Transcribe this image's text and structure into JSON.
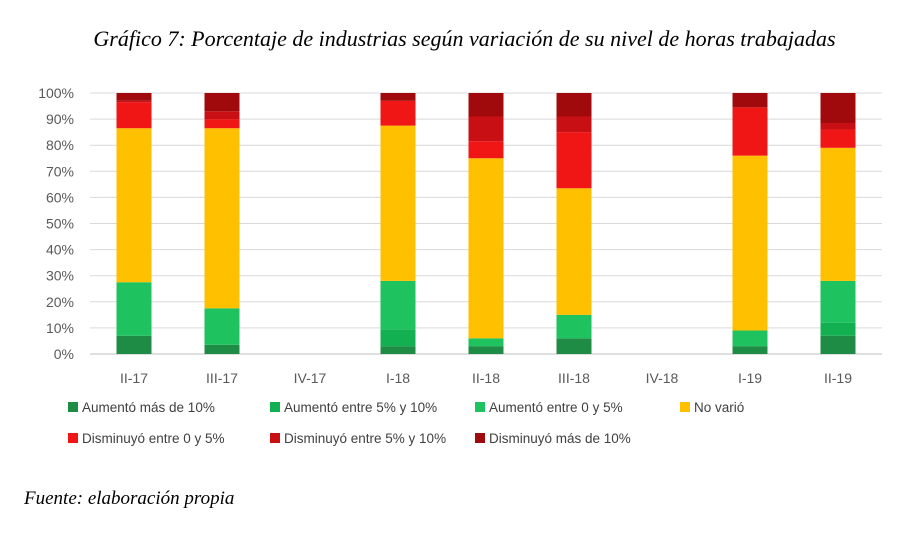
{
  "title": "Gráfico 7: Porcentaje de industrias según variación de su nivel de horas trabajadas",
  "source": "Fuente: elaboración propia",
  "chart_data": {
    "type": "bar",
    "stacked": true,
    "categories": [
      "II-17",
      "III-17",
      "IV-17",
      "I-18",
      "II-18",
      "III-18",
      "IV-18",
      "I-19",
      "II-19"
    ],
    "ylim": [
      0,
      100
    ],
    "yticks": [
      "0%",
      "10%",
      "20%",
      "30%",
      "40%",
      "50%",
      "60%",
      "70%",
      "80%",
      "90%",
      "100%"
    ],
    "grid": true,
    "legend_position": "bottom",
    "series": [
      {
        "name": "Aumentó más de 10%",
        "color": "#1e8c45",
        "values": [
          7,
          3.5,
          0,
          3,
          3,
          6,
          0,
          3,
          7
        ]
      },
      {
        "name": "Aumentó entre 5% y 10%",
        "color": "#13b052",
        "values": [
          0,
          0,
          0,
          6.5,
          0,
          0,
          0,
          0,
          5
        ]
      },
      {
        "name": "Aumentó entre 0 y 5%",
        "color": "#1ec35f",
        "values": [
          20.5,
          14,
          0,
          18.5,
          3,
          9,
          0,
          6,
          16
        ]
      },
      {
        "name": "No varió",
        "color": "#ffc000",
        "values": [
          59,
          69,
          0,
          59.5,
          69,
          48.5,
          0,
          67,
          51
        ]
      },
      {
        "name": "Disminuyó entre 0 y 5%",
        "color": "#f01616",
        "values": [
          10,
          3.5,
          0,
          9.5,
          6.5,
          21.5,
          0,
          18.5,
          7
        ]
      },
      {
        "name": "Disminuyó entre 5% y 10%",
        "color": "#c80f14",
        "values": [
          0.5,
          3,
          0,
          0,
          9.5,
          6,
          0,
          0,
          2.5
        ]
      },
      {
        "name": "Disminuyó más de 10%",
        "color": "#a00a0c",
        "values": [
          3,
          7,
          0,
          3,
          9,
          9,
          0,
          5.5,
          11.5
        ]
      }
    ]
  }
}
